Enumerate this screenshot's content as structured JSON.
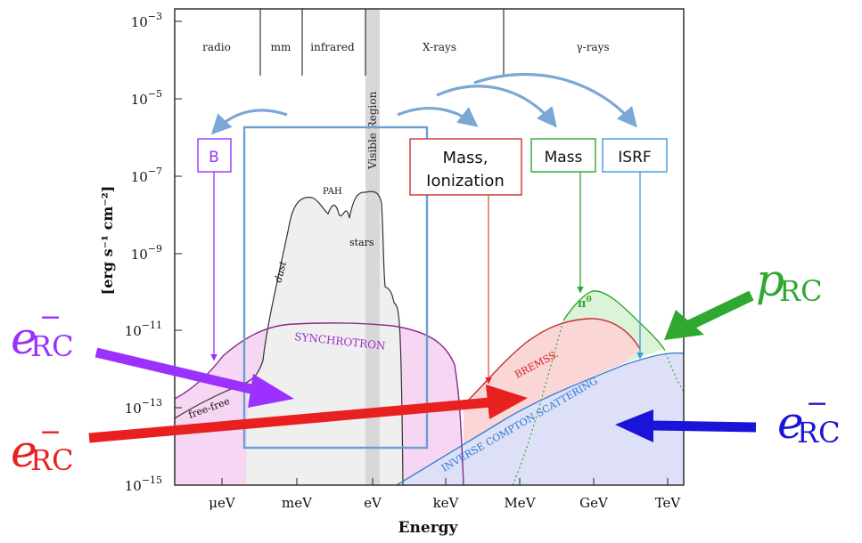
{
  "yaxis": {
    "label": "[erg s⁻¹ cm⁻²]",
    "ticks": [
      {
        "base": "10",
        "exp": "−3"
      },
      {
        "base": "10",
        "exp": "−5"
      },
      {
        "base": "10",
        "exp": "−7"
      },
      {
        "base": "10",
        "exp": "−9"
      },
      {
        "base": "10",
        "exp": "−11"
      },
      {
        "base": "10",
        "exp": "−13"
      },
      {
        "base": "10",
        "exp": "−15"
      }
    ]
  },
  "xaxis": {
    "label": "Energy",
    "ticks": [
      "μeV",
      "meV",
      "eV",
      "keV",
      "MeV",
      "GeV",
      "TeV"
    ]
  },
  "bands": [
    "radio",
    "mm",
    "infrared",
    "X-rays",
    "γ-rays"
  ],
  "visible_region": "Visible Region",
  "boxes": {
    "b": "B",
    "mass_ion_line1": "Mass,",
    "mass_ion_line2": "Ionization",
    "mass": "Mass",
    "isrf": "ISRF"
  },
  "curve_labels": {
    "pah": "PAH",
    "stars": "stars",
    "dust": "dust",
    "free_free": "free-free",
    "synchrotron": "SYNCHROTRON",
    "brems": "BREMSS.",
    "pi0_base": "π",
    "pi0_sup": "0",
    "ic": "INVERSE COMPTON SCATTERING"
  },
  "particles": {
    "p_rc_main": "p",
    "p_rc_sub": "RC",
    "e_main": "e",
    "e_sub": "RC",
    "e_bar": "−"
  },
  "colors": {
    "sync": "#9b30ff",
    "brems": "#e82020",
    "pi0": "#2ea82e",
    "ic": "#2b6fd6",
    "blue_arrow": "#1a14d8",
    "box_blue": "#4a8fd0",
    "isrf_blue": "#3b9ae0",
    "curved_arrows": "#7ba7d4"
  }
}
